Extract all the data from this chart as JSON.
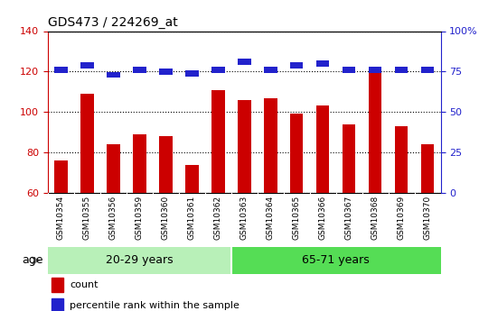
{
  "title": "GDS473 / 224269_at",
  "samples": [
    "GSM10354",
    "GSM10355",
    "GSM10356",
    "GSM10359",
    "GSM10360",
    "GSM10361",
    "GSM10362",
    "GSM10363",
    "GSM10364",
    "GSM10365",
    "GSM10366",
    "GSM10367",
    "GSM10368",
    "GSM10369",
    "GSM10370"
  ],
  "count_values": [
    76,
    109,
    84,
    89,
    88,
    74,
    111,
    106,
    107,
    99,
    103,
    94,
    121,
    93,
    84
  ],
  "percentile_values": [
    76,
    79,
    73,
    76,
    75,
    74,
    76,
    81,
    76,
    79,
    80,
    76,
    76,
    76,
    76
  ],
  "ylim_left": [
    60,
    140
  ],
  "ylim_right": [
    0,
    100
  ],
  "yticks_left": [
    60,
    80,
    100,
    120,
    140
  ],
  "yticks_right": [
    0,
    25,
    50,
    75,
    100
  ],
  "group1_label": "20-29 years",
  "group2_label": "65-71 years",
  "group1_count": 7,
  "group2_count": 8,
  "age_label": "age",
  "legend_count": "count",
  "legend_percentile": "percentile rank within the sample",
  "bar_color_count": "#cc0000",
  "bar_color_percentile": "#2222cc",
  "group1_bg": "#b8f0b8",
  "group2_bg": "#55dd55",
  "axis_bg": "#d8d8d8",
  "plot_bg": "#ffffff",
  "bar_width": 0.5,
  "percentile_bar_height": 3
}
